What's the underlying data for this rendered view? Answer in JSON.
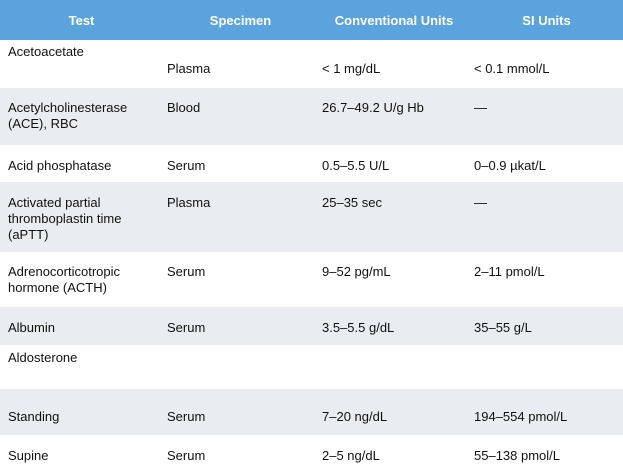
{
  "table": {
    "headers": [
      "Test",
      "Specimen",
      "Conventional Units",
      "SI Units"
    ],
    "rows": [
      {
        "test": "Acetoacetate",
        "specimen": "Plasma",
        "conventional": "< 1 mg/dL",
        "si": "< 0.1 mmol/L"
      },
      {
        "test": "Acetylcholinesterase\n(ACE), RBC",
        "specimen": "Blood",
        "conventional": "26.7–49.2 U/g Hb",
        "si": "—"
      },
      {
        "test": "Acid phosphatase",
        "specimen": "Serum",
        "conventional": "0.5–5.5 U/L",
        "si": "0–0.9 µkat/L"
      },
      {
        "test": "Activated partial\nthromboplastin time\n(aPTT)",
        "specimen": "Plasma",
        "conventional": "25–35 sec",
        "si": "—"
      },
      {
        "test": "Adrenocorticotropic\nhormone (ACTH)",
        "specimen": "Serum",
        "conventional": "9–52 pg/mL",
        "si": "2–11 pmol/L"
      },
      {
        "test": "Albumin",
        "specimen": "Serum",
        "conventional": "3.5–5.5 g/dL",
        "si": "35–55 g/L"
      },
      {
        "test": "Aldosterone",
        "specimen": "",
        "conventional": "",
        "si": ""
      },
      {
        "test": "Standing",
        "specimen": "Serum",
        "conventional": "7–20 ng/dL",
        "si": "194–554 pmol/L"
      },
      {
        "test": "Supine",
        "specimen": "Serum",
        "conventional": "2–5 ng/dL",
        "si": "55–138 pmol/L"
      }
    ]
  }
}
